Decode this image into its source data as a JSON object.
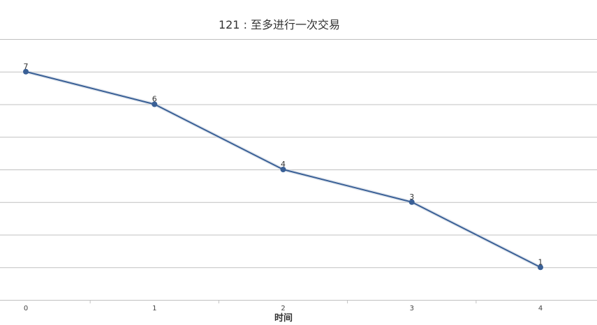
{
  "chart_data": {
    "type": "line",
    "title": "121 : 至多进行一次交易",
    "xlabel": "时间",
    "ylabel": "",
    "categories": [
      "0",
      "1",
      "2",
      "3",
      "4"
    ],
    "series": [
      {
        "values": [
          7,
          6,
          4,
          3,
          1
        ],
        "color": "#3a6096"
      }
    ],
    "ylim": [
      0,
      8
    ],
    "grid": true,
    "data_labels": true,
    "legend": "none"
  }
}
